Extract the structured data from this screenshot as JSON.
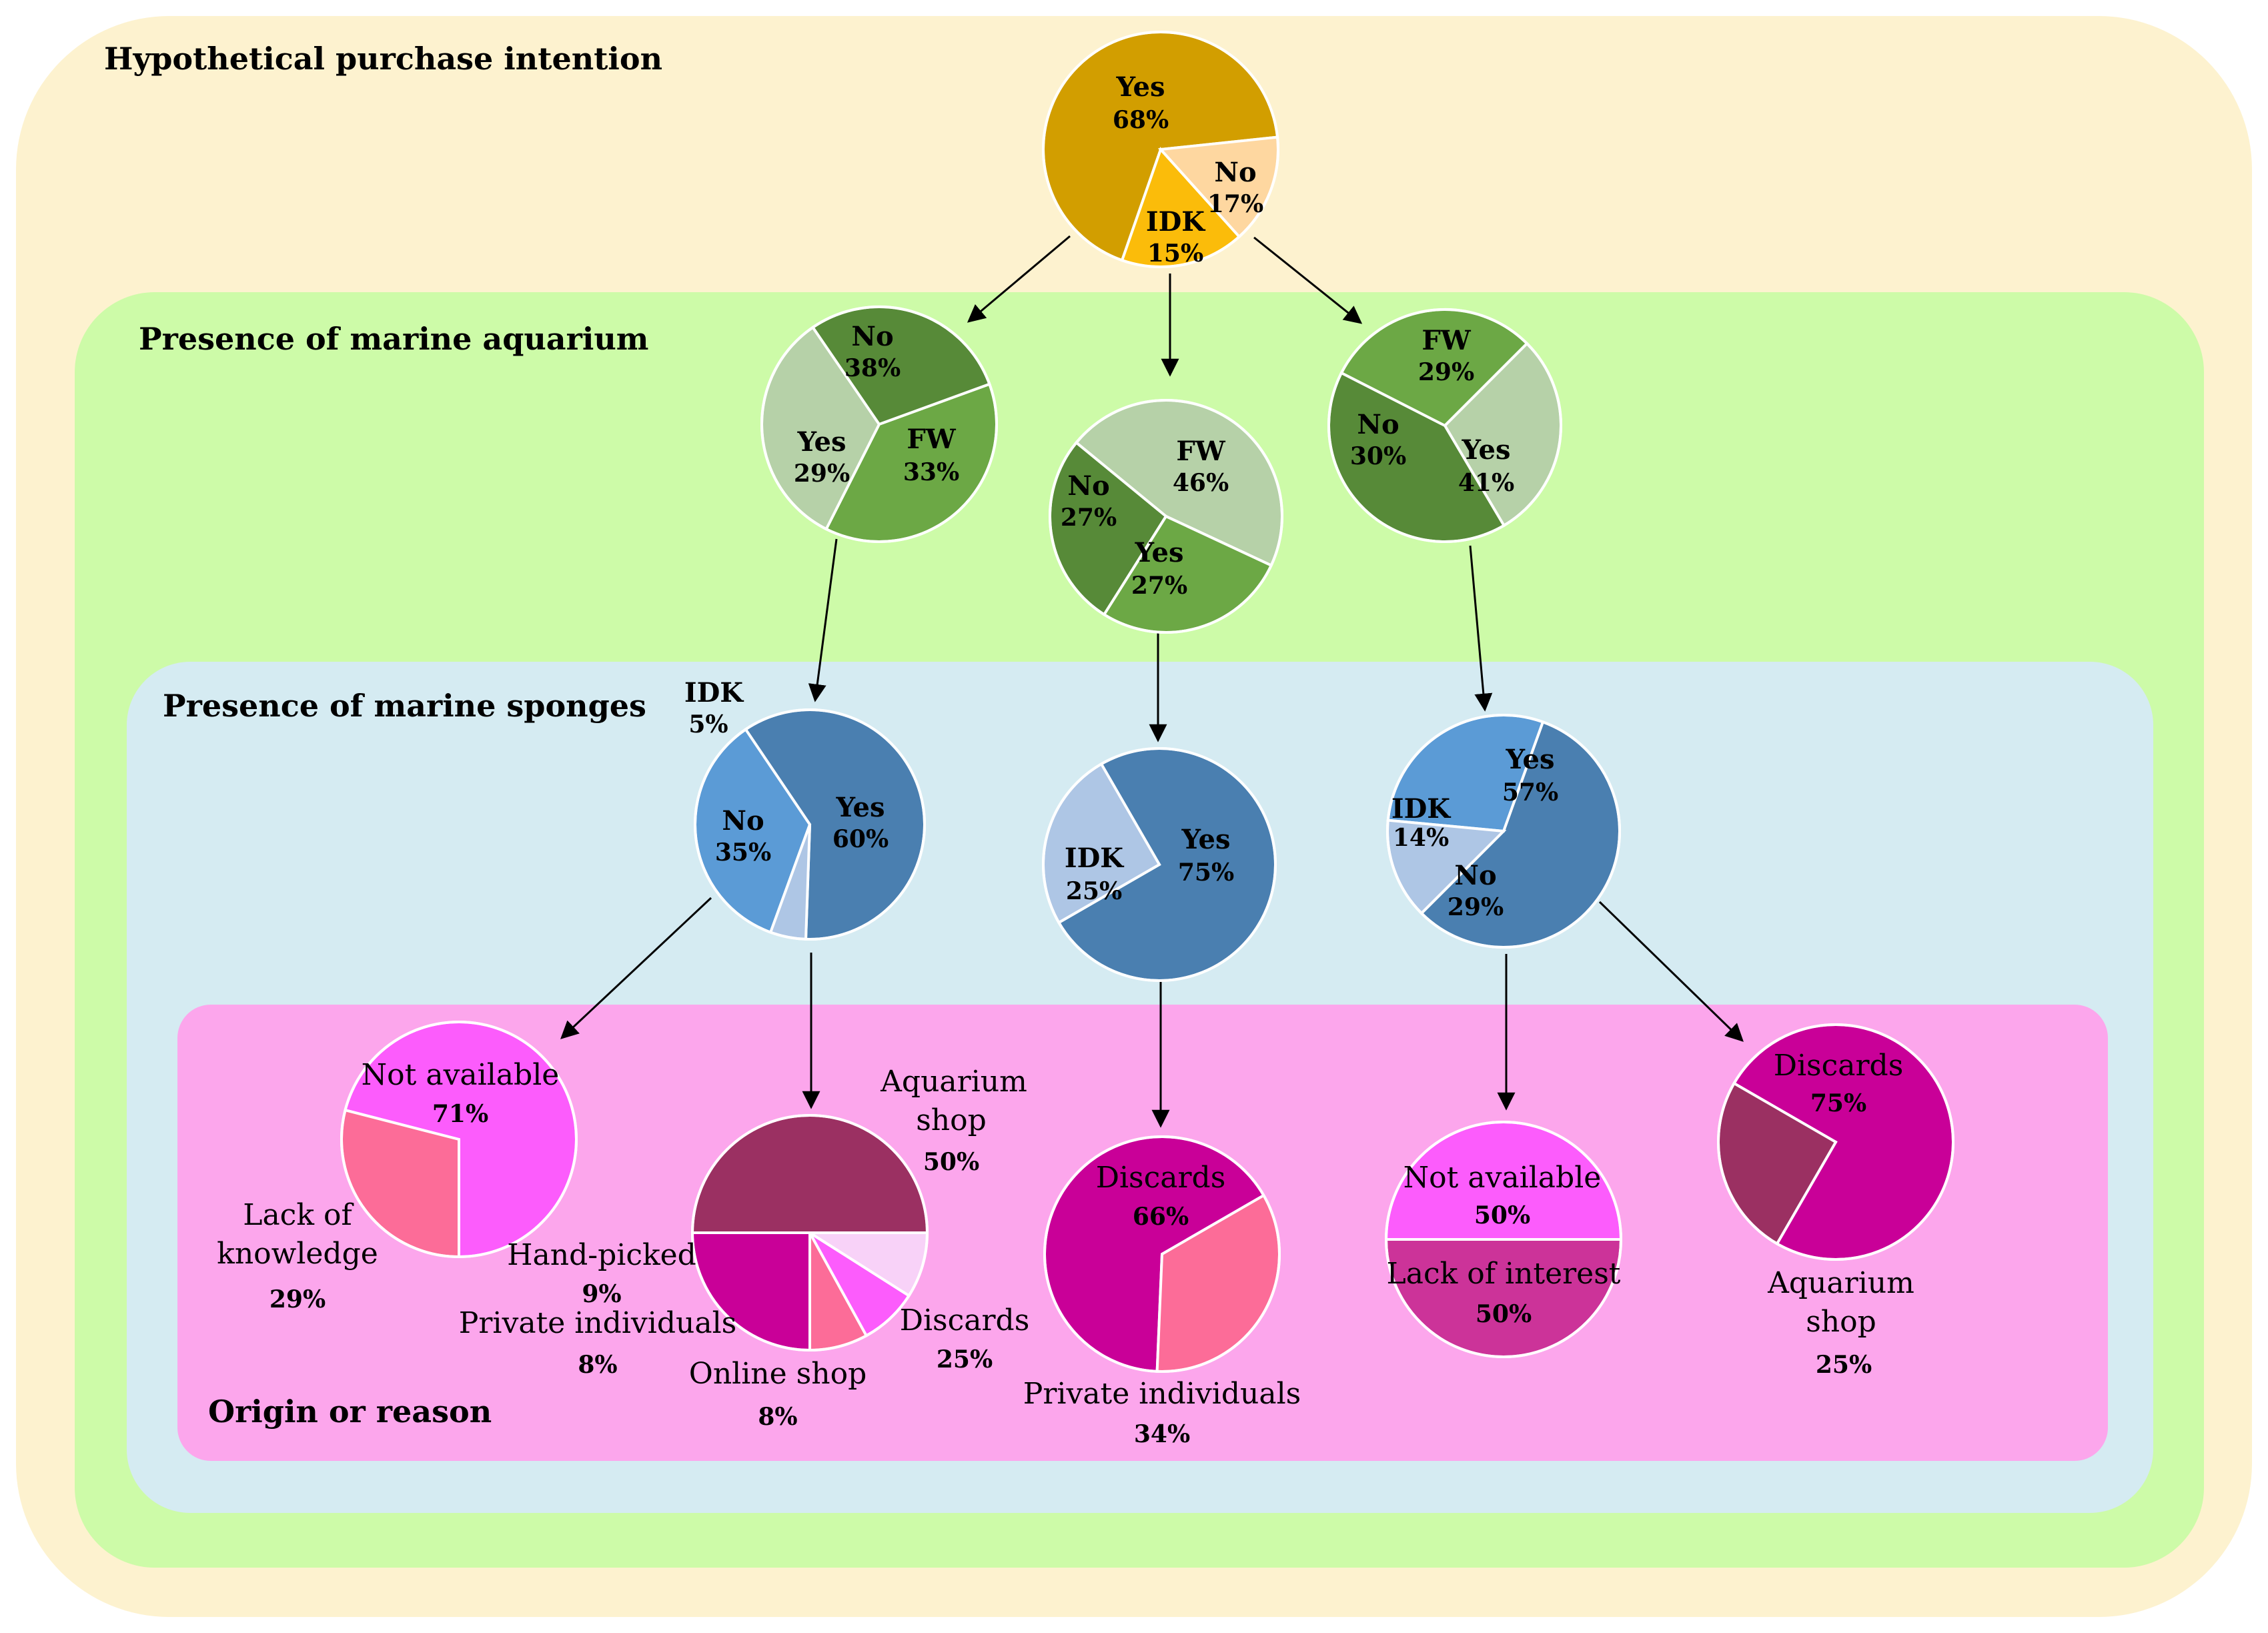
{
  "sections": {
    "purchase": "Hypothetical purchase intention",
    "aquarium": "Presence of marine aquarium",
    "sponges": "Presence of marine sponges",
    "origin": "Origin or reason"
  },
  "colors": {
    "bg_purchase": "#fdf2cf",
    "bg_aquarium": "#cdfba8",
    "bg_sponges": "#d5ebf2",
    "bg_origin": "#fca6ec",
    "yes_gold": "#d29e00",
    "no_gold": "#fbbc0a",
    "idk_gold": "#fed7a0",
    "no_green": "#6ca845",
    "yes_green": "#578a38",
    "fw_green": "#b6d1a8",
    "yes_blue": "#4a7fb0",
    "no_blue": "#5b9bd6",
    "idk_blue": "#aec6e5",
    "magenta_light": "#fc5cfc",
    "pink_dark": "#fc6c98",
    "plum": "#9b3062",
    "magenta_dark": "#c90098",
    "lavender": "#f8d2f8",
    "orchid": "#cc3399"
  },
  "chart_data": [
    {
      "id": "purchase-intention",
      "type": "pie",
      "title": "Hypothetical purchase intention",
      "slices": [
        {
          "label": "Yes",
          "pct": "68%",
          "value": 68,
          "color": "#d29e00"
        },
        {
          "label": "No",
          "pct": "17%",
          "value": 17,
          "color": "#fbbc0a"
        },
        {
          "label": "IDK",
          "pct": "15%",
          "value": 15,
          "color": "#fed7a0"
        }
      ]
    },
    {
      "id": "aquarium-given-yes",
      "type": "pie",
      "title": "Presence of marine aquarium",
      "slices": [
        {
          "label": "No",
          "pct": "38%",
          "value": 38,
          "color": "#6ca845"
        },
        {
          "label": "FW",
          "pct": "33%",
          "value": 33,
          "color": "#b6d1a8"
        },
        {
          "label": "Yes",
          "pct": "29%",
          "value": 29,
          "color": "#578a38"
        }
      ]
    },
    {
      "id": "aquarium-given-idk",
      "type": "pie",
      "title": "Presence of marine aquarium",
      "slices": [
        {
          "label": "FW",
          "pct": "46%",
          "value": 46,
          "color": "#b6d1a8"
        },
        {
          "label": "Yes",
          "pct": "27%",
          "value": 27,
          "color": "#578a38"
        },
        {
          "label": "No",
          "pct": "27%",
          "value": 27,
          "color": "#6ca845"
        }
      ]
    },
    {
      "id": "aquarium-given-no",
      "type": "pie",
      "title": "Presence of marine aquarium",
      "slices": [
        {
          "label": "FW",
          "pct": "29%",
          "value": 29,
          "color": "#b6d1a8"
        },
        {
          "label": "Yes",
          "pct": "41%",
          "value": 41,
          "color": "#578a38"
        },
        {
          "label": "No",
          "pct": "30%",
          "value": 30,
          "color": "#6ca845"
        }
      ]
    },
    {
      "id": "sponges-left",
      "type": "pie",
      "title": "Presence of marine sponges",
      "slices": [
        {
          "label": "Yes",
          "pct": "60%",
          "value": 60,
          "color": "#4a7fb0"
        },
        {
          "label": "No",
          "pct": "35%",
          "value": 35,
          "color": "#5b9bd6"
        },
        {
          "label": "IDK",
          "pct": "5%",
          "value": 5,
          "color": "#aec6e5"
        }
      ]
    },
    {
      "id": "sponges-middle",
      "type": "pie",
      "title": "Presence of marine sponges",
      "slices": [
        {
          "label": "Yes",
          "pct": "75%",
          "value": 75,
          "color": "#4a7fb0"
        },
        {
          "label": "IDK",
          "pct": "25%",
          "value": 25,
          "color": "#aec6e5"
        }
      ]
    },
    {
      "id": "sponges-right",
      "type": "pie",
      "title": "Presence of marine sponges",
      "slices": [
        {
          "label": "Yes",
          "pct": "57%",
          "value": 57,
          "color": "#4a7fb0"
        },
        {
          "label": "No",
          "pct": "29%",
          "value": 29,
          "color": "#5b9bd6"
        },
        {
          "label": "IDK",
          "pct": "14%",
          "value": 14,
          "color": "#aec6e5"
        }
      ]
    },
    {
      "id": "reason-not-available",
      "type": "pie",
      "title": "Origin or reason",
      "slices": [
        {
          "label": "Not available",
          "pct": "71%",
          "value": 71,
          "color": "#fc5cfc"
        },
        {
          "label": "Lack of knowledge",
          "pct": "29%",
          "value": 29,
          "color": "#fc6c98"
        }
      ]
    },
    {
      "id": "origin-aquarium-shop",
      "type": "pie",
      "title": "Origin or reason",
      "slices": [
        {
          "label": "Aquarium shop",
          "pct": "50%",
          "value": 50,
          "color": "#9b3062"
        },
        {
          "label": "Discards",
          "pct": "25%",
          "value": 25,
          "color": "#c90098"
        },
        {
          "label": "Online shop",
          "pct": "8%",
          "value": 8,
          "color": "#fc6c98"
        },
        {
          "label": "Private individuals",
          "pct": "8%",
          "value": 8,
          "color": "#fc5cfc"
        },
        {
          "label": "Hand-picked",
          "pct": "9%",
          "value": 9,
          "color": "#f8d2f8"
        }
      ]
    },
    {
      "id": "origin-discards-middle",
      "type": "pie",
      "title": "Origin or reason",
      "slices": [
        {
          "label": "Discards",
          "pct": "66%",
          "value": 66,
          "color": "#c90098"
        },
        {
          "label": "Private individuals",
          "pct": "34%",
          "value": 34,
          "color": "#fc6c98"
        }
      ]
    },
    {
      "id": "reason-not-available-right",
      "type": "pie",
      "title": "Origin or reason",
      "slices": [
        {
          "label": "Not available",
          "pct": "50%",
          "value": 50,
          "color": "#fc5cfc"
        },
        {
          "label": "Lack of interest",
          "pct": "50%",
          "value": 50,
          "color": "#cc3399"
        }
      ]
    },
    {
      "id": "origin-discards-right",
      "type": "pie",
      "title": "Origin or reason",
      "slices": [
        {
          "label": "Discards",
          "pct": "75%",
          "value": 75,
          "color": "#c90098"
        },
        {
          "label": "Aquarium shop",
          "pct": "25%",
          "value": 25,
          "color": "#9b3062"
        }
      ]
    }
  ]
}
